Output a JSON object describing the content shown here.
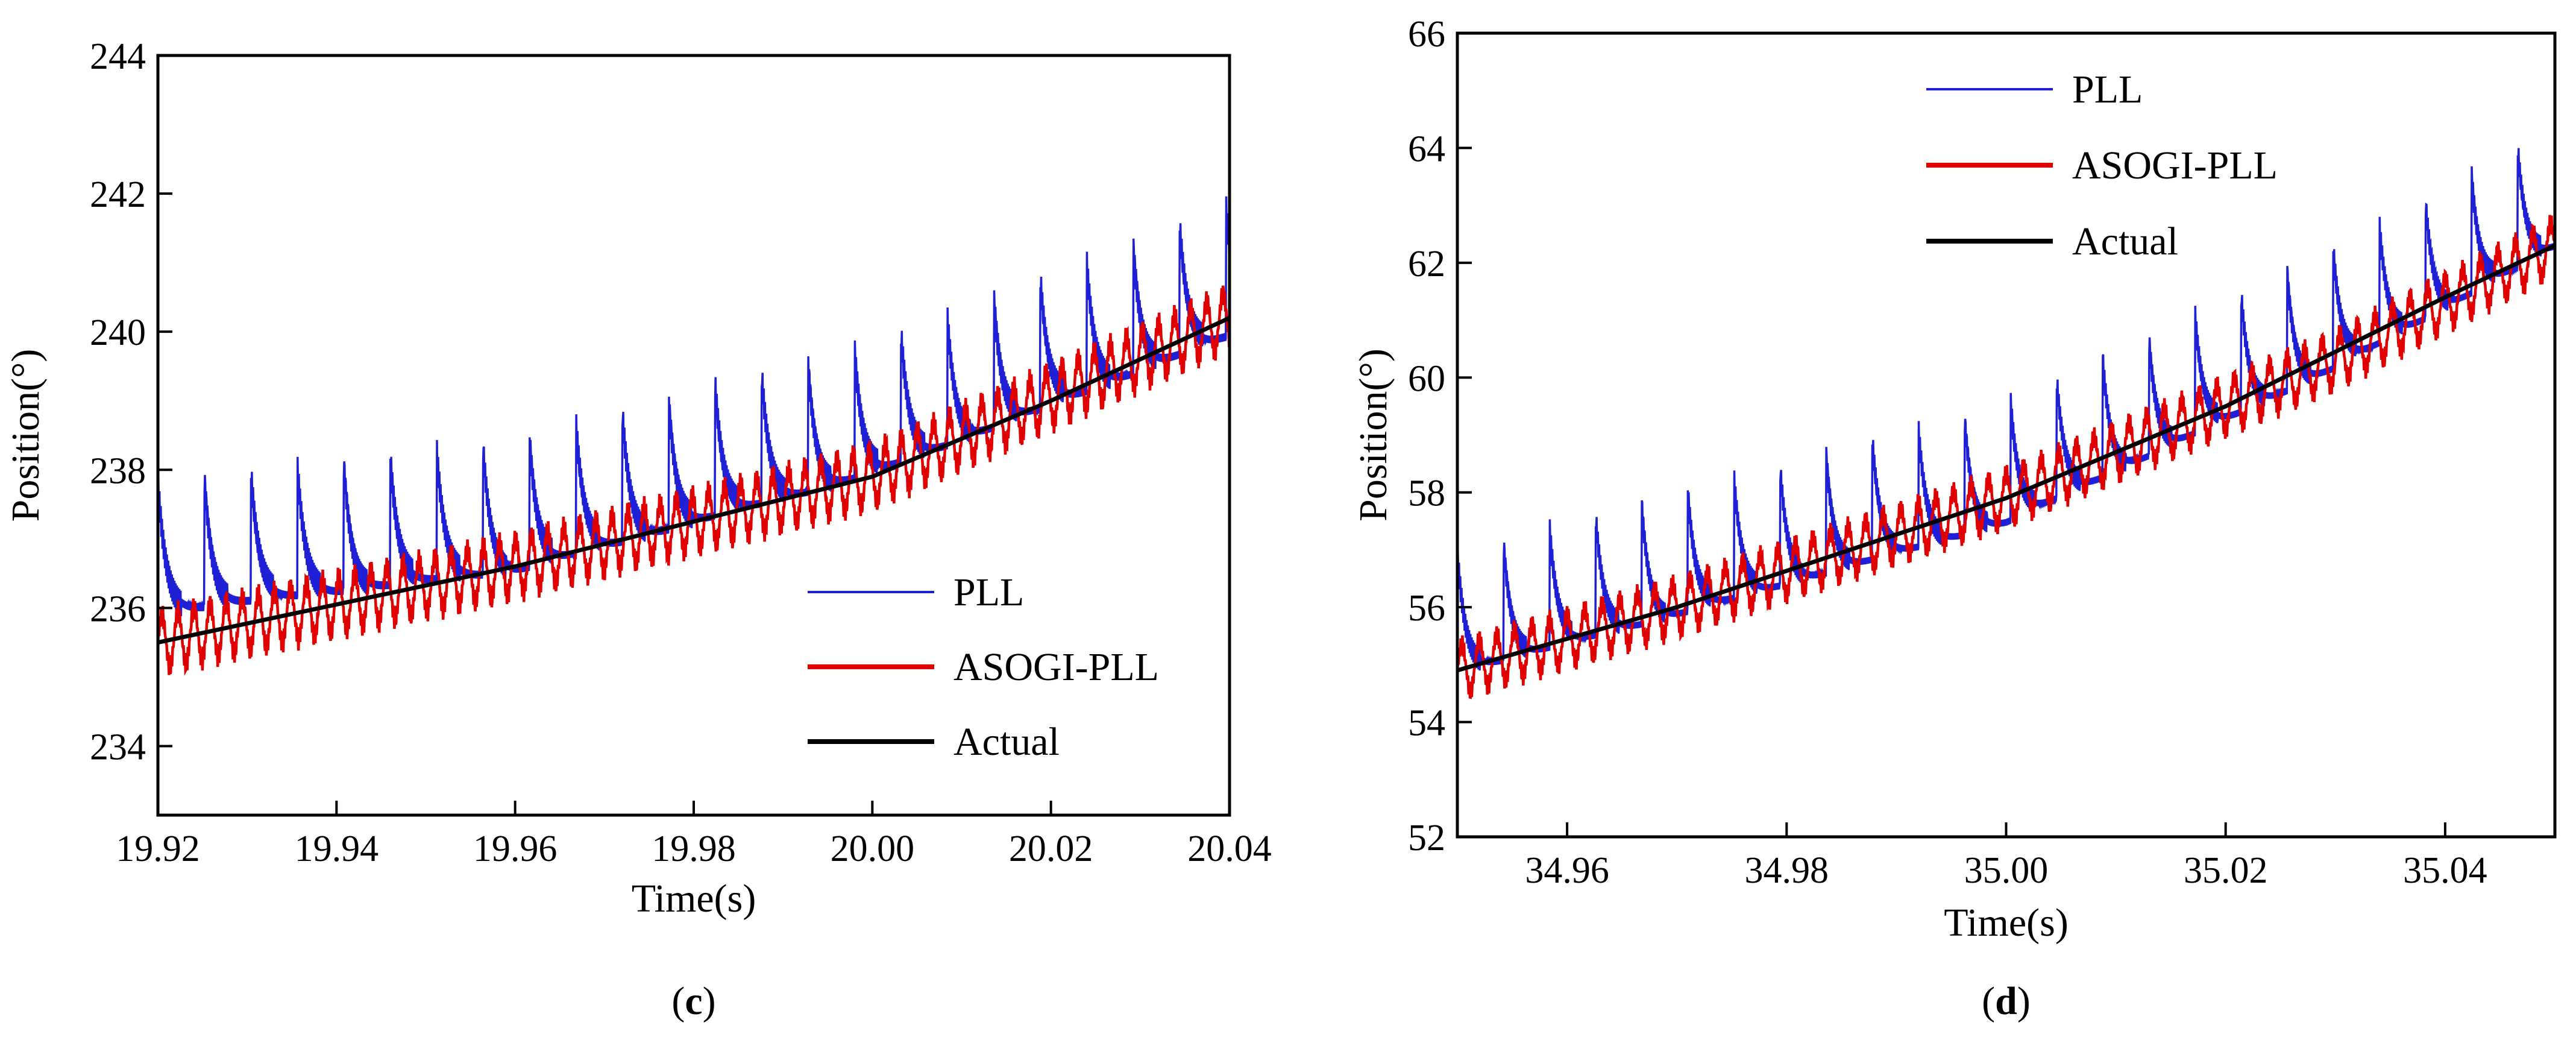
{
  "chart_data": [
    {
      "type": "line",
      "panel": "c",
      "title": "",
      "xlabel": "Time(s)",
      "ylabel": "Position(°)",
      "xlim": [
        19.92,
        20.04
      ],
      "ylim": [
        233,
        244
      ],
      "xticks": [
        19.92,
        19.94,
        19.96,
        19.98,
        20.0,
        20.02,
        20.04
      ],
      "xtick_labels": [
        "19.92",
        "19.94",
        "19.96",
        "19.98",
        "20.00",
        "20.02",
        "20.04"
      ],
      "yticks": [
        234,
        236,
        238,
        240,
        242,
        244
      ],
      "ytick_labels": [
        "234",
        "236",
        "238",
        "240",
        "242",
        "244"
      ],
      "grid": false,
      "legend_position": "lower-right",
      "panel_label": {
        "open": "(",
        "letter": "c",
        "close": ")"
      },
      "series": [
        {
          "name": "PLL",
          "color": "#1f1fd6",
          "style": "oscillating",
          "baseline": [
            [
              19.92,
              236.6
            ],
            [
              19.96,
              237.2
            ],
            [
              20.0,
              238.6
            ],
            [
              20.04,
              240.6
            ]
          ],
          "peak_amplitude": 1.9,
          "ripple_period": 0.0052
        },
        {
          "name": "ASOGI-PLL",
          "color": "#e00000",
          "style": "ripple",
          "baseline": [
            [
              19.92,
              235.5
            ],
            [
              19.96,
              236.6
            ],
            [
              20.0,
              237.9
            ],
            [
              20.04,
              240.2
            ]
          ],
          "ripple_amplitude": 0.55,
          "ripple_period": 0.0018
        },
        {
          "name": "Actual",
          "color": "#000000",
          "style": "solid",
          "points": [
            [
              19.92,
              235.5
            ],
            [
              19.96,
              236.6
            ],
            [
              20.0,
              237.9
            ],
            [
              20.02,
              239.0
            ],
            [
              20.04,
              240.2
            ]
          ]
        }
      ]
    },
    {
      "type": "line",
      "panel": "d",
      "title": "",
      "xlabel": "Time(s)",
      "ylabel": "Position(°)",
      "xlim": [
        34.95,
        35.05
      ],
      "ylim": [
        52,
        66
      ],
      "xticks": [
        34.96,
        34.98,
        35.0,
        35.02,
        35.04
      ],
      "xtick_labels": [
        "34.96",
        "34.98",
        "35.00",
        "35.02",
        "35.04"
      ],
      "yticks": [
        52,
        54,
        56,
        58,
        60,
        62,
        64,
        66
      ],
      "ytick_labels": [
        "52",
        "54",
        "56",
        "58",
        "60",
        "62",
        "64",
        "66"
      ],
      "grid": false,
      "legend_position": "top-center",
      "panel_label": {
        "open": "(",
        "letter": "d",
        "close": ")"
      },
      "series": [
        {
          "name": "PLL",
          "color": "#1f1fd6",
          "style": "oscillating",
          "baseline": [
            [
              34.95,
              55.6
            ],
            [
              34.97,
              56.6
            ],
            [
              35.0,
              58.2
            ],
            [
              35.03,
              60.9
            ],
            [
              35.05,
              63.0
            ]
          ],
          "peak_amplitude": 2.1,
          "ripple_period": 0.0042
        },
        {
          "name": "ASOGI-PLL",
          "color": "#e00000",
          "style": "ripple",
          "baseline": [
            [
              34.95,
              54.9
            ],
            [
              34.97,
              56.0
            ],
            [
              35.0,
              57.9
            ],
            [
              35.03,
              60.3
            ],
            [
              35.05,
              62.3
            ]
          ],
          "ripple_amplitude": 0.6,
          "ripple_period": 0.0016
        },
        {
          "name": "Actual",
          "color": "#000000",
          "style": "solid",
          "points": [
            [
              34.95,
              54.9
            ],
            [
              34.97,
              56.0
            ],
            [
              35.0,
              57.9
            ],
            [
              35.02,
              59.5
            ],
            [
              35.04,
              61.4
            ],
            [
              35.05,
              62.3
            ]
          ]
        }
      ]
    }
  ]
}
